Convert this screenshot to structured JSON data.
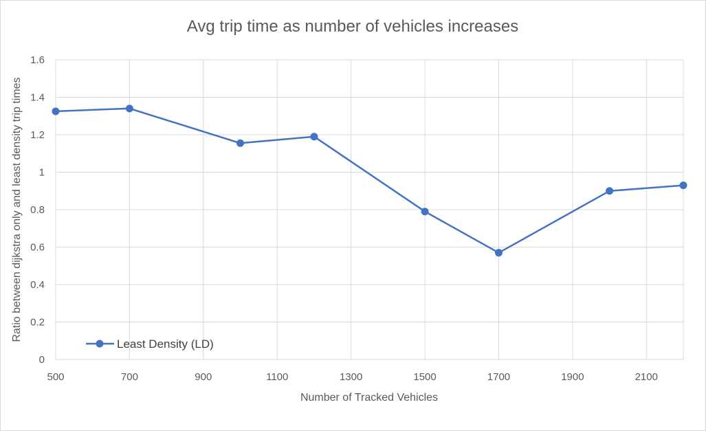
{
  "chart_data": {
    "type": "line",
    "title": "Avg trip time as number of vehicles increases",
    "xlabel": "Number of Tracked Vehicles",
    "ylabel": "Ratio between dijkstra only and least density trip times",
    "xlim": [
      500,
      2200
    ],
    "ylim": [
      0,
      1.6
    ],
    "x_ticks": [
      "500",
      "700",
      "900",
      "1100",
      "1300",
      "1500",
      "1700",
      "1900",
      "2100"
    ],
    "y_ticks": [
      "0",
      "0.2",
      "0.4",
      "0.6",
      "0.8",
      "1",
      "1.2",
      "1.4",
      "1.6"
    ],
    "grid": true,
    "legend_position": "bottom-left",
    "series": [
      {
        "name": "Least Density (LD)",
        "color": "#4472c4",
        "x": [
          500,
          700,
          1000,
          1200,
          1500,
          1700,
          2000,
          2200
        ],
        "y": [
          1.325,
          1.34,
          1.155,
          1.19,
          0.79,
          0.57,
          0.9,
          0.93
        ]
      }
    ]
  }
}
